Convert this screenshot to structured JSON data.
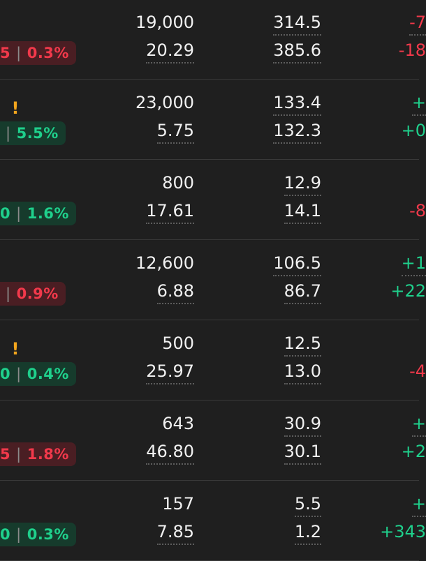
{
  "rows": [
    {
      "badge_left": "5",
      "badge_right": "0.3%",
      "trend": "down",
      "warn": "",
      "top_value": "19,000",
      "bottom_value": "20.29",
      "top_metric": "314.5",
      "bottom_metric": "385.6",
      "top_change": "-7",
      "bottom_change": "-18",
      "top_change_trend": "neg",
      "bottom_change_trend": "neg"
    },
    {
      "badge_left": "",
      "badge_right": "5.5%",
      "trend": "up",
      "warn": "!",
      "top_value": "23,000",
      "bottom_value": "5.75",
      "top_metric": "133.4",
      "bottom_metric": "132.3",
      "top_change": "+",
      "bottom_change": "+0",
      "top_change_trend": "pos",
      "bottom_change_trend": "pos"
    },
    {
      "badge_left": "0",
      "badge_right": "1.6%",
      "trend": "up",
      "warn": "",
      "top_value": "800",
      "bottom_value": "17.61",
      "top_metric": "12.9",
      "bottom_metric": "14.1",
      "top_change": "",
      "bottom_change": "-8",
      "top_change_trend": "neg",
      "bottom_change_trend": "neg"
    },
    {
      "badge_left": "",
      "badge_right": "0.9%",
      "trend": "down",
      "warn": "",
      "top_value": "12,600",
      "bottom_value": "6.88",
      "top_metric": "106.5",
      "bottom_metric": "86.7",
      "top_change": "+1",
      "bottom_change": "+22",
      "top_change_trend": "pos",
      "bottom_change_trend": "pos"
    },
    {
      "badge_left": "0",
      "badge_right": "0.4%",
      "trend": "up",
      "warn": "!",
      "top_value": "500",
      "bottom_value": "25.97",
      "top_metric": "12.5",
      "bottom_metric": "13.0",
      "top_change": "",
      "bottom_change": "-4",
      "top_change_trend": "neg",
      "bottom_change_trend": "neg"
    },
    {
      "badge_left": "5",
      "badge_right": "1.8%",
      "trend": "down",
      "warn": "",
      "top_value": "643",
      "bottom_value": "46.80",
      "top_metric": "30.9",
      "bottom_metric": "30.1",
      "top_change": "+",
      "bottom_change": "+2",
      "top_change_trend": "pos",
      "bottom_change_trend": "pos"
    },
    {
      "badge_left": "0",
      "badge_right": "0.3%",
      "trend": "up",
      "warn": "",
      "top_value": "157",
      "bottom_value": "7.85",
      "top_metric": "5.5",
      "bottom_metric": "1.2",
      "top_change": "+",
      "bottom_change": "+343",
      "top_change_trend": "pos",
      "bottom_change_trend": "pos"
    }
  ],
  "colors": {
    "background": "#1f1f1f",
    "positive": "#1fd08c",
    "negative": "#f2394b",
    "warning": "#f3a51d",
    "divider": "#393939"
  }
}
